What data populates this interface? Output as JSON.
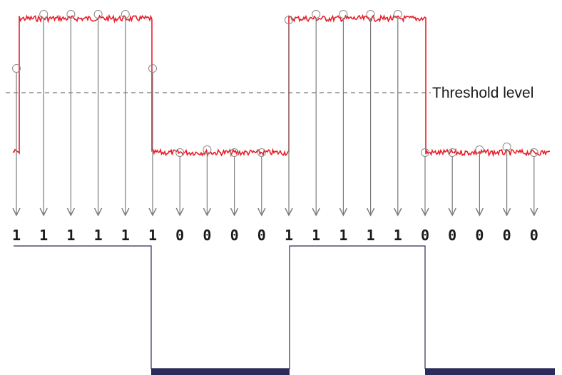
{
  "threshold_label": "Threshold level",
  "bits": [
    "1",
    "1",
    "1",
    "1",
    "1",
    "1",
    "0",
    "0",
    "0",
    "0",
    "1",
    "1",
    "1",
    "1",
    "1",
    "0",
    "0",
    "0",
    "0",
    "0"
  ],
  "colors": {
    "signal": "#e8202a",
    "arrow": "#7a7a7a",
    "sample_circle": "#8a8a8a",
    "threshold": "#555555",
    "digital_line": "#2b2a5a",
    "digital_fill": "#2b2a5a",
    "bit_text": "#1a1a1a"
  }
}
